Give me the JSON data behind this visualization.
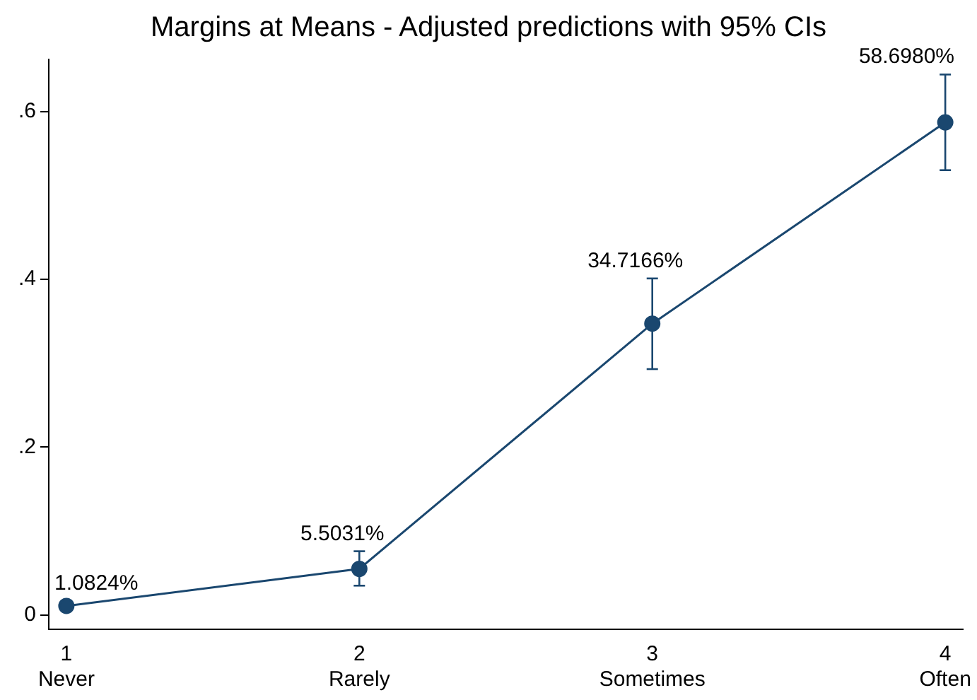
{
  "chart_data": {
    "type": "line",
    "title": "Margins at Means - Adjusted predictions with 95% CIs",
    "x": [
      1,
      2,
      3,
      4
    ],
    "series": [
      {
        "color": "#1a476f",
        "values": [
          0.010824,
          0.055031,
          0.347166,
          0.58698
        ],
        "errors": [
          [
            0.005,
            0.017
          ],
          [
            0.035,
            0.076
          ],
          [
            0.293,
            0.401
          ],
          [
            0.53,
            0.644
          ]
        ],
        "value_labels": [
          "1.0824%",
          "5.5031%",
          "34.7166%",
          "58.6980%"
        ]
      }
    ],
    "xlim": [
      0.94,
      4.06
    ],
    "xticks": [
      {
        "value": 1,
        "label": "1\nNever"
      },
      {
        "value": 2,
        "label": "2\nRarely"
      },
      {
        "value": 3,
        "label": "3\nSometimes"
      },
      {
        "value": 4,
        "label": "4\nOften"
      }
    ],
    "ylim": [
      -0.017,
      0.662
    ],
    "yticks": [
      {
        "value": 0,
        "label": "0"
      },
      {
        "value": 0.2,
        "label": ".2"
      },
      {
        "value": 0.4,
        "label": ".4"
      },
      {
        "value": 0.6,
        "label": ".6"
      }
    ],
    "grid": false,
    "legend": false,
    "marker": "circle",
    "line_style": "solid"
  }
}
